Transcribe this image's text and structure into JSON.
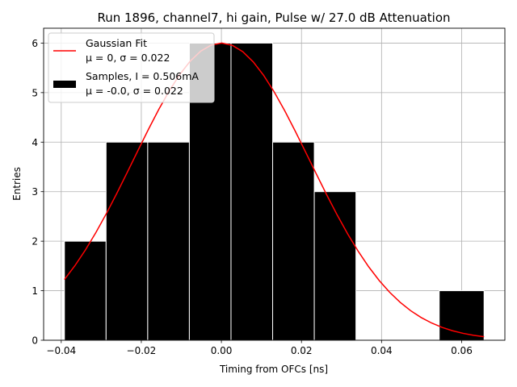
{
  "chart_data": {
    "type": "bar",
    "title": "Run 1896, channel7, hi gain, Pulse w/ 27.0 dB Attenuation",
    "xlabel": "Timing from OFCs [ns]",
    "ylabel": "Entries",
    "xlim": [
      -0.0444,
      0.0708
    ],
    "ylim": [
      0,
      6.3
    ],
    "grid": true,
    "legend_position": "top-left",
    "xticks": [
      {
        "value": -0.04,
        "label": "−0.04"
      },
      {
        "value": -0.02,
        "label": "−0.02"
      },
      {
        "value": 0.0,
        "label": "0.00"
      },
      {
        "value": 0.02,
        "label": "0.02"
      },
      {
        "value": 0.04,
        "label": "0.04"
      },
      {
        "value": 0.06,
        "label": "0.06"
      }
    ],
    "yticks": [
      {
        "value": 0,
        "label": "0"
      },
      {
        "value": 1,
        "label": "1"
      },
      {
        "value": 2,
        "label": "2"
      },
      {
        "value": 3,
        "label": "3"
      },
      {
        "value": 4,
        "label": "4"
      },
      {
        "value": 5,
        "label": "5"
      },
      {
        "value": 6,
        "label": "6"
      }
    ],
    "histogram": {
      "color": "#000000",
      "edge_color": "#ffffff",
      "legend_lines": [
        "Samples, I = 0.506mA",
        "μ = -0.0, σ = 0.022"
      ],
      "bin_edges": [
        -0.0392,
        -0.0288,
        -0.0184,
        -0.008,
        0.0024,
        0.0128,
        0.0232,
        0.0336,
        0.044,
        0.0544,
        0.0656
      ],
      "counts": [
        2,
        4,
        4,
        6,
        6,
        4,
        3,
        0,
        0,
        1
      ]
    },
    "fit": {
      "color": "#ff0000",
      "legend_lines": [
        "Gaussian Fit",
        "μ = 0, σ = 0.022"
      ],
      "mu": 0,
      "sigma": 0.022,
      "amplitude": 6.0,
      "x_range": [
        -0.0392,
        0.0656
      ]
    }
  }
}
